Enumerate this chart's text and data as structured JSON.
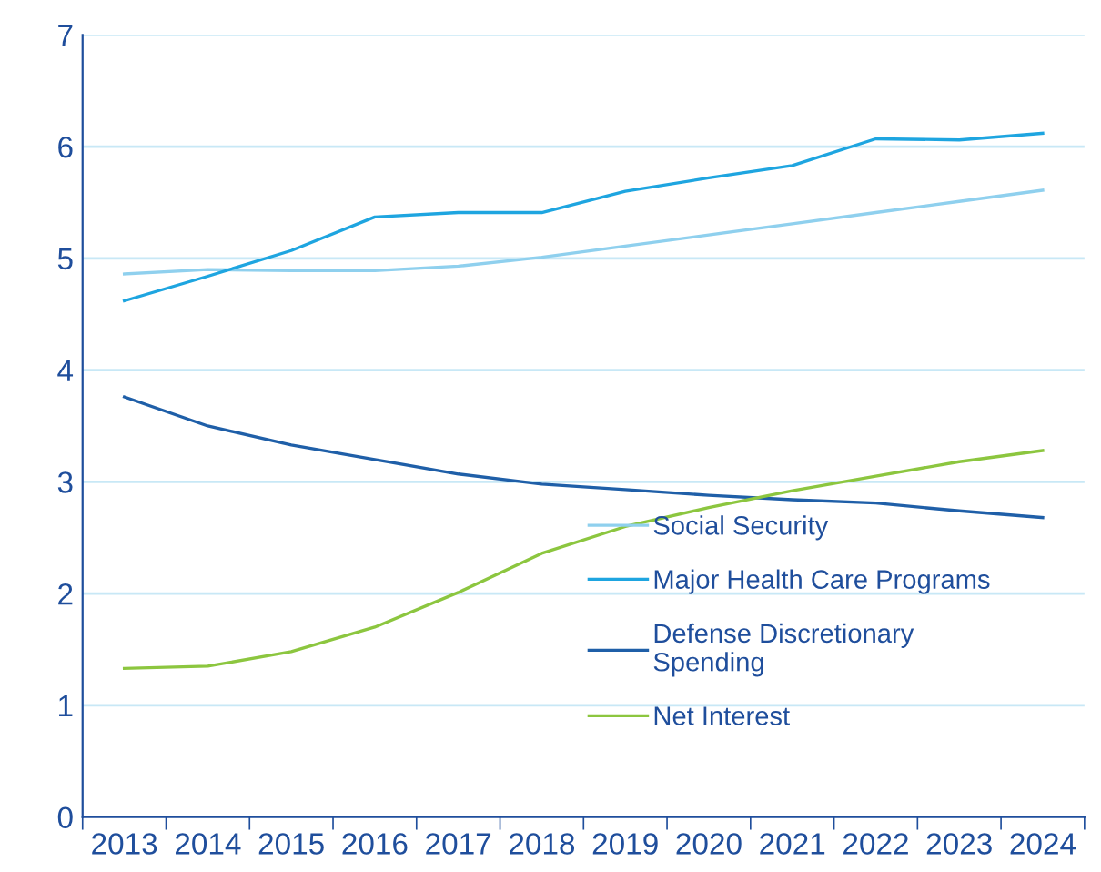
{
  "chart_data": {
    "type": "line",
    "categories": [
      "2013",
      "2014",
      "2015",
      "2016",
      "2017",
      "2018",
      "2019",
      "2020",
      "2021",
      "2022",
      "2023",
      "2024"
    ],
    "series": [
      {
        "name": "Social Security",
        "color": "#8fd0ee",
        "values": [
          4.86,
          4.9,
          4.89,
          4.89,
          4.93,
          5.01,
          5.11,
          5.21,
          5.31,
          5.41,
          5.51,
          5.61
        ]
      },
      {
        "name": "Major Health Care Programs",
        "color": "#1ea5e0",
        "values": [
          4.62,
          4.84,
          5.07,
          5.37,
          5.41,
          5.41,
          5.6,
          5.72,
          5.83,
          6.07,
          6.06,
          6.12
        ]
      },
      {
        "name": "Defense Discretionary\nSpending",
        "color": "#1f5fa8",
        "values": [
          3.76,
          3.5,
          3.33,
          3.2,
          3.07,
          2.98,
          2.93,
          2.88,
          2.84,
          2.81,
          2.74,
          2.68
        ]
      },
      {
        "name": "Net Interest",
        "color": "#8cc63f",
        "values": [
          1.33,
          1.35,
          1.48,
          1.7,
          2.01,
          2.36,
          2.6,
          2.77,
          2.92,
          3.05,
          3.18,
          3.28
        ]
      }
    ],
    "ylim": [
      0,
      7
    ],
    "yticks": [
      0,
      1,
      2,
      3,
      4,
      5,
      6,
      7
    ],
    "grid": "y",
    "legend": "bottom right",
    "marker": "none",
    "line_style": "solid"
  }
}
